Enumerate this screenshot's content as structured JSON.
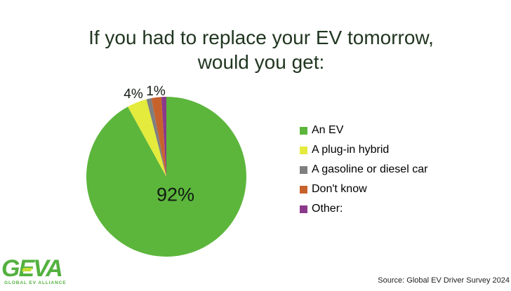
{
  "title": {
    "line1": "If you had to replace your EV tomorrow,",
    "line2": "would you get:"
  },
  "chart_data": {
    "type": "pie",
    "title": "If you had to replace your EV tomorrow, would you get:",
    "legend_position": "right",
    "start_angle_deg": 0,
    "direction": "clockwise",
    "slices": [
      {
        "label": "An EV",
        "value": 92,
        "percent_label": "92%",
        "color": "#5cb63c"
      },
      {
        "label": "A plug-in hybrid",
        "value": 4,
        "percent_label": "4%",
        "color": "#e4eb3d"
      },
      {
        "label": "A gasoline or diesel car",
        "value": 1,
        "percent_label": "1%",
        "color": "#7f7f7f"
      },
      {
        "label": "Don't know",
        "value": 2,
        "percent_label": "",
        "color": "#c8622d"
      },
      {
        "label": "Other:",
        "value": 1,
        "percent_label": "",
        "color": "#8b3a8b"
      }
    ]
  },
  "footer": {
    "logo_text": "GEVA",
    "logo_tagline": "GLOBAL EV ALLIANCE",
    "source": "Source: Global EV Driver Survey 2024"
  }
}
